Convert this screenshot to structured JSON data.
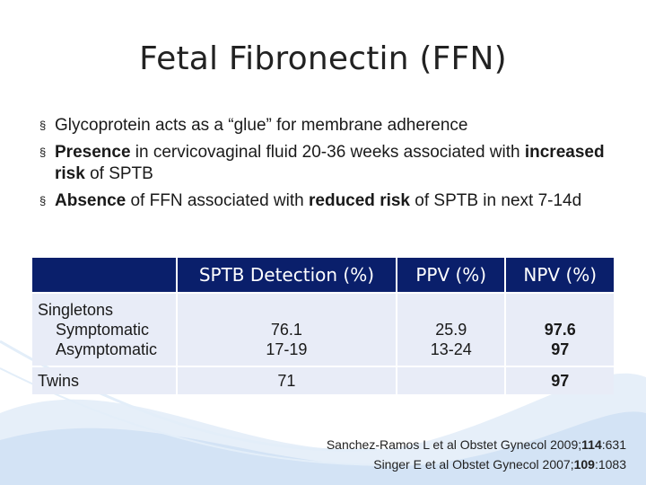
{
  "title": "Fetal Fibronectin (FFN)",
  "bullets": {
    "b1": {
      "text": "Glycoprotein acts as a “glue” for membrane adherence"
    },
    "b2": {
      "bold1": "Presence",
      "mid": " in cervicovaginal fluid 20-36 weeks associated with ",
      "bold2": "increased risk",
      "end": " of SPTB"
    },
    "b3": {
      "bold1": "Absence",
      "mid": " of FFN associated with ",
      "bold2": "reduced risk",
      "end": " of SPTB in next 7-14d"
    },
    "marker": "§"
  },
  "table": {
    "headers": [
      "",
      "SPTB Detection (%)",
      "PPV (%)",
      "NPV (%)"
    ],
    "singletons": {
      "label1": "Singletons",
      "label2": "Symptomatic",
      "label3": "Asymptomatic",
      "detection_sym": "76.1",
      "detection_asym": "17-19",
      "ppv_sym": "25.9",
      "ppv_asym": "13-24",
      "npv_sym": "97.6",
      "npv_asym": "97"
    },
    "twins": {
      "label": "Twins",
      "detection": "71",
      "ppv": "",
      "npv": "97"
    }
  },
  "refs": {
    "r1": {
      "pre": "Sanchez-Ramos L et al Obstet Gynecol 2009;",
      "vol": "114",
      "post": ":631"
    },
    "r2": {
      "pre": "Singer E et al Obstet Gynecol 2007;",
      "vol": "109",
      "post": ":1083"
    }
  },
  "colors": {
    "header_bg": "#0a1f6b",
    "cell_bg": "#e8ecf7",
    "swirl": "#bcd3ee"
  }
}
